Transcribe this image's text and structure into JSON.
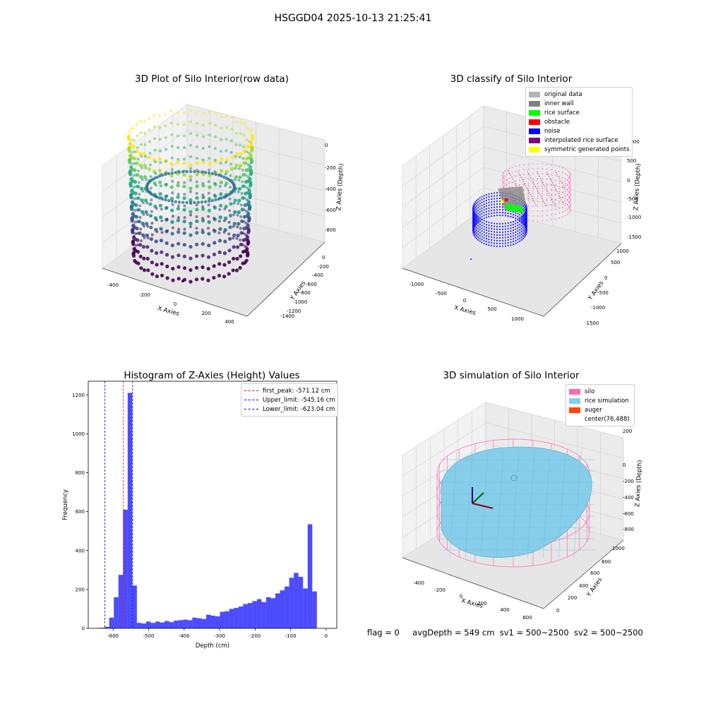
{
  "suptitle": "HSGGD04 2025-10-13 21:25:41",
  "panel_raw": {
    "title": "3D Plot of Silo Interior(row data)",
    "xlabel": "X Axies",
    "ylabel": "Y Axies",
    "zlabel": "Z Axies (Depth)",
    "x_ticks": [
      "-400",
      "-200",
      "0",
      "200",
      "400"
    ],
    "y_ticks": [
      "0",
      "-200",
      "-400",
      "-600",
      "-800",
      "-1000",
      "-1200",
      "-1400"
    ],
    "z_ticks": [
      "0",
      "-200",
      "-400",
      "-600",
      "-800"
    ]
  },
  "panel_classify": {
    "title": "3D classify of Silo Interior",
    "xlabel": "X Axies",
    "ylabel": "Y Axies",
    "zlabel": "Z Axies (Depth)",
    "x_ticks": [
      "-1000",
      "-500",
      "0",
      "500",
      "1000"
    ],
    "y_ticks": [
      "1000",
      "500",
      "0",
      "-500",
      "-1000",
      "-1500"
    ],
    "z_ticks": [
      "1000",
      "500",
      "0",
      "-500",
      "-1000",
      "-1500"
    ],
    "legend": [
      {
        "label": "original data",
        "color": "#b3b3b3"
      },
      {
        "label": "inner wall",
        "color": "#808080"
      },
      {
        "label": "rice surface",
        "color": "#00ff00"
      },
      {
        "label": "obstacle",
        "color": "#ff0000"
      },
      {
        "label": "noise",
        "color": "#0000ff"
      },
      {
        "label": "interpolated rice surface",
        "color": "#800080"
      },
      {
        "label": "symmetric generated points",
        "color": "#ffff00"
      }
    ]
  },
  "panel_sim": {
    "title": "3D simulation of Silo Interior",
    "xlabel": "X Axies",
    "ylabel": "Y Axies",
    "zlabel": "Z Axies (Depth)",
    "x_ticks": [
      "-400",
      "-200",
      "0",
      "200",
      "400",
      "600"
    ],
    "y_ticks": [
      "0",
      "200",
      "400",
      "600",
      "800",
      "1000"
    ],
    "z_ticks": [
      "200",
      "0",
      "-200",
      "-400",
      "-600",
      "-800"
    ],
    "legend": [
      {
        "label": "silo",
        "color": "#ff69b4"
      },
      {
        "label": "rice simulation",
        "color": "#87ceeb"
      },
      {
        "label": "auger",
        "color": "#ff4500"
      },
      {
        "label": "center(76,488)",
        "color": ""
      }
    ]
  },
  "chart_data": {
    "type": "bar",
    "title": "Histogram of Z-Axies (Height) Values",
    "xlabel": "Depth (cm)",
    "ylabel": "Frequency",
    "xlim": [
      -670,
      30
    ],
    "ylim": [
      0,
      1270
    ],
    "x_ticks": [
      -600,
      -500,
      -400,
      -300,
      -200,
      -100,
      0
    ],
    "y_ticks": [
      0,
      200,
      400,
      600,
      800,
      1000,
      1200
    ],
    "bar_color": "#0000ff",
    "bin_edges_start": -650,
    "bin_width": 13,
    "values": [
      2,
      3,
      8,
      55,
      160,
      275,
      610,
      1210,
      220,
      28,
      25,
      35,
      28,
      35,
      30,
      38,
      32,
      40,
      42,
      45,
      42,
      55,
      52,
      48,
      70,
      65,
      62,
      85,
      88,
      100,
      105,
      112,
      125,
      130,
      140,
      150,
      135,
      160,
      155,
      180,
      195,
      215,
      260,
      285,
      265,
      205,
      535,
      190
    ],
    "lines": [
      {
        "label": "first_peak: -571.12 cm",
        "x": -571.12,
        "color": "#ff0000"
      },
      {
        "label": "Upper_limit: -545.16 cm",
        "x": -545.16,
        "color": "#0000ff"
      },
      {
        "label": "Lower_limit: -623.04 cm",
        "x": -623.04,
        "color": "#0000ff"
      }
    ]
  },
  "status": {
    "flag": "flag = 0",
    "avg": "avgDepth = 549 cm",
    "sv1": "sv1 = 500~2500",
    "sv2": "sv2 = 500~2500"
  }
}
